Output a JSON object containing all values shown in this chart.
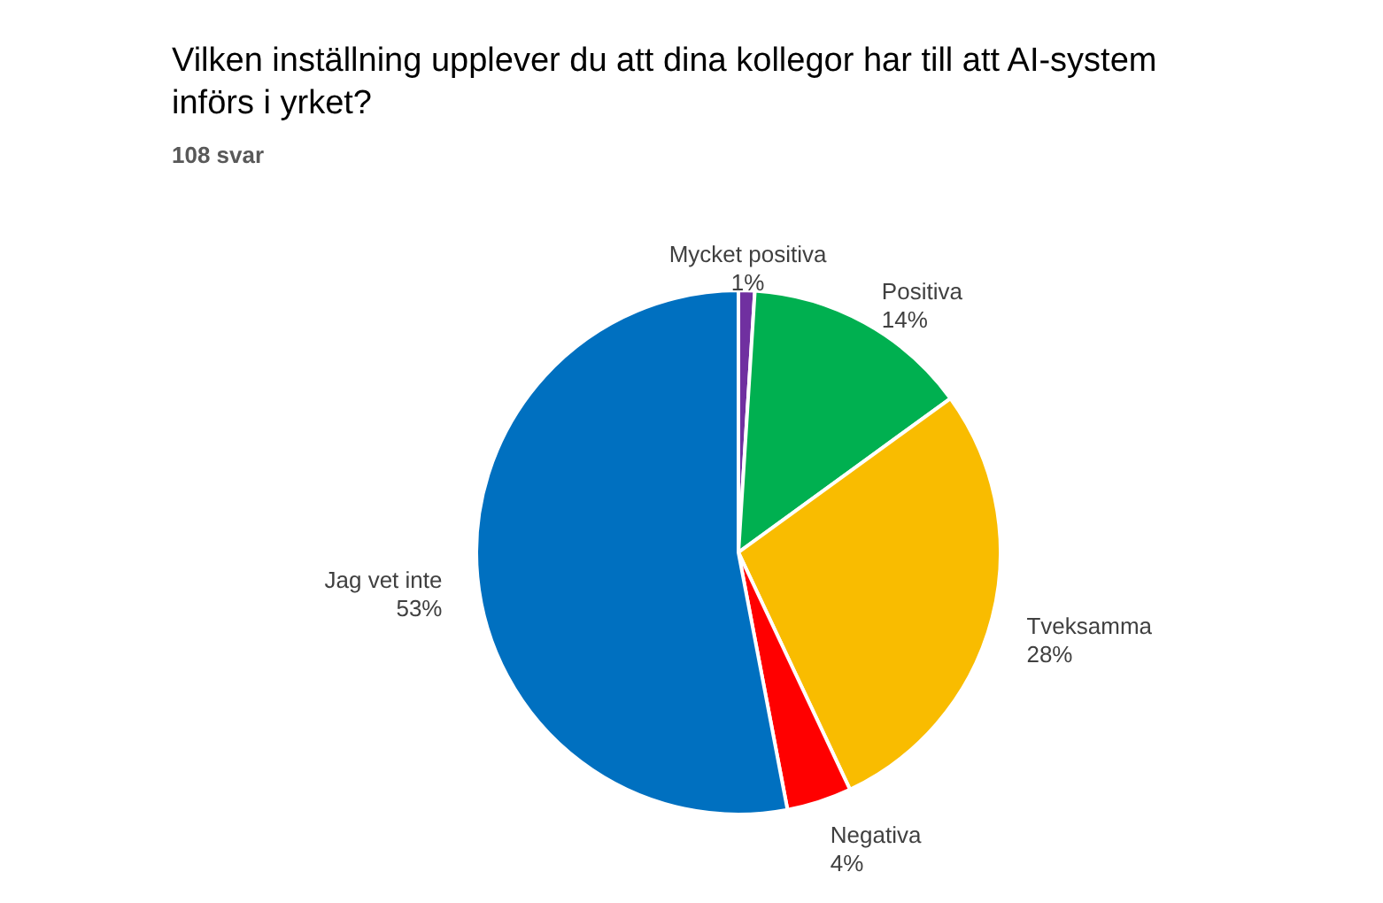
{
  "chart_data": {
    "type": "pie",
    "title": "Vilken inställning upplever du att dina kollegor har till att AI-system\ninförs i yrket?",
    "subtitle": "108 svar",
    "categories": [
      "Mycket positiva",
      "Positiva",
      "Tveksamma",
      "Negativa",
      "Jag vet inte"
    ],
    "values": [
      1,
      14,
      28,
      4,
      53
    ],
    "colors": [
      "#7030a0",
      "#00b050",
      "#f9bc00",
      "#ff0000",
      "#0070c0"
    ],
    "value_labels": [
      "1%",
      "14%",
      "28%",
      "4%",
      "53%"
    ]
  }
}
